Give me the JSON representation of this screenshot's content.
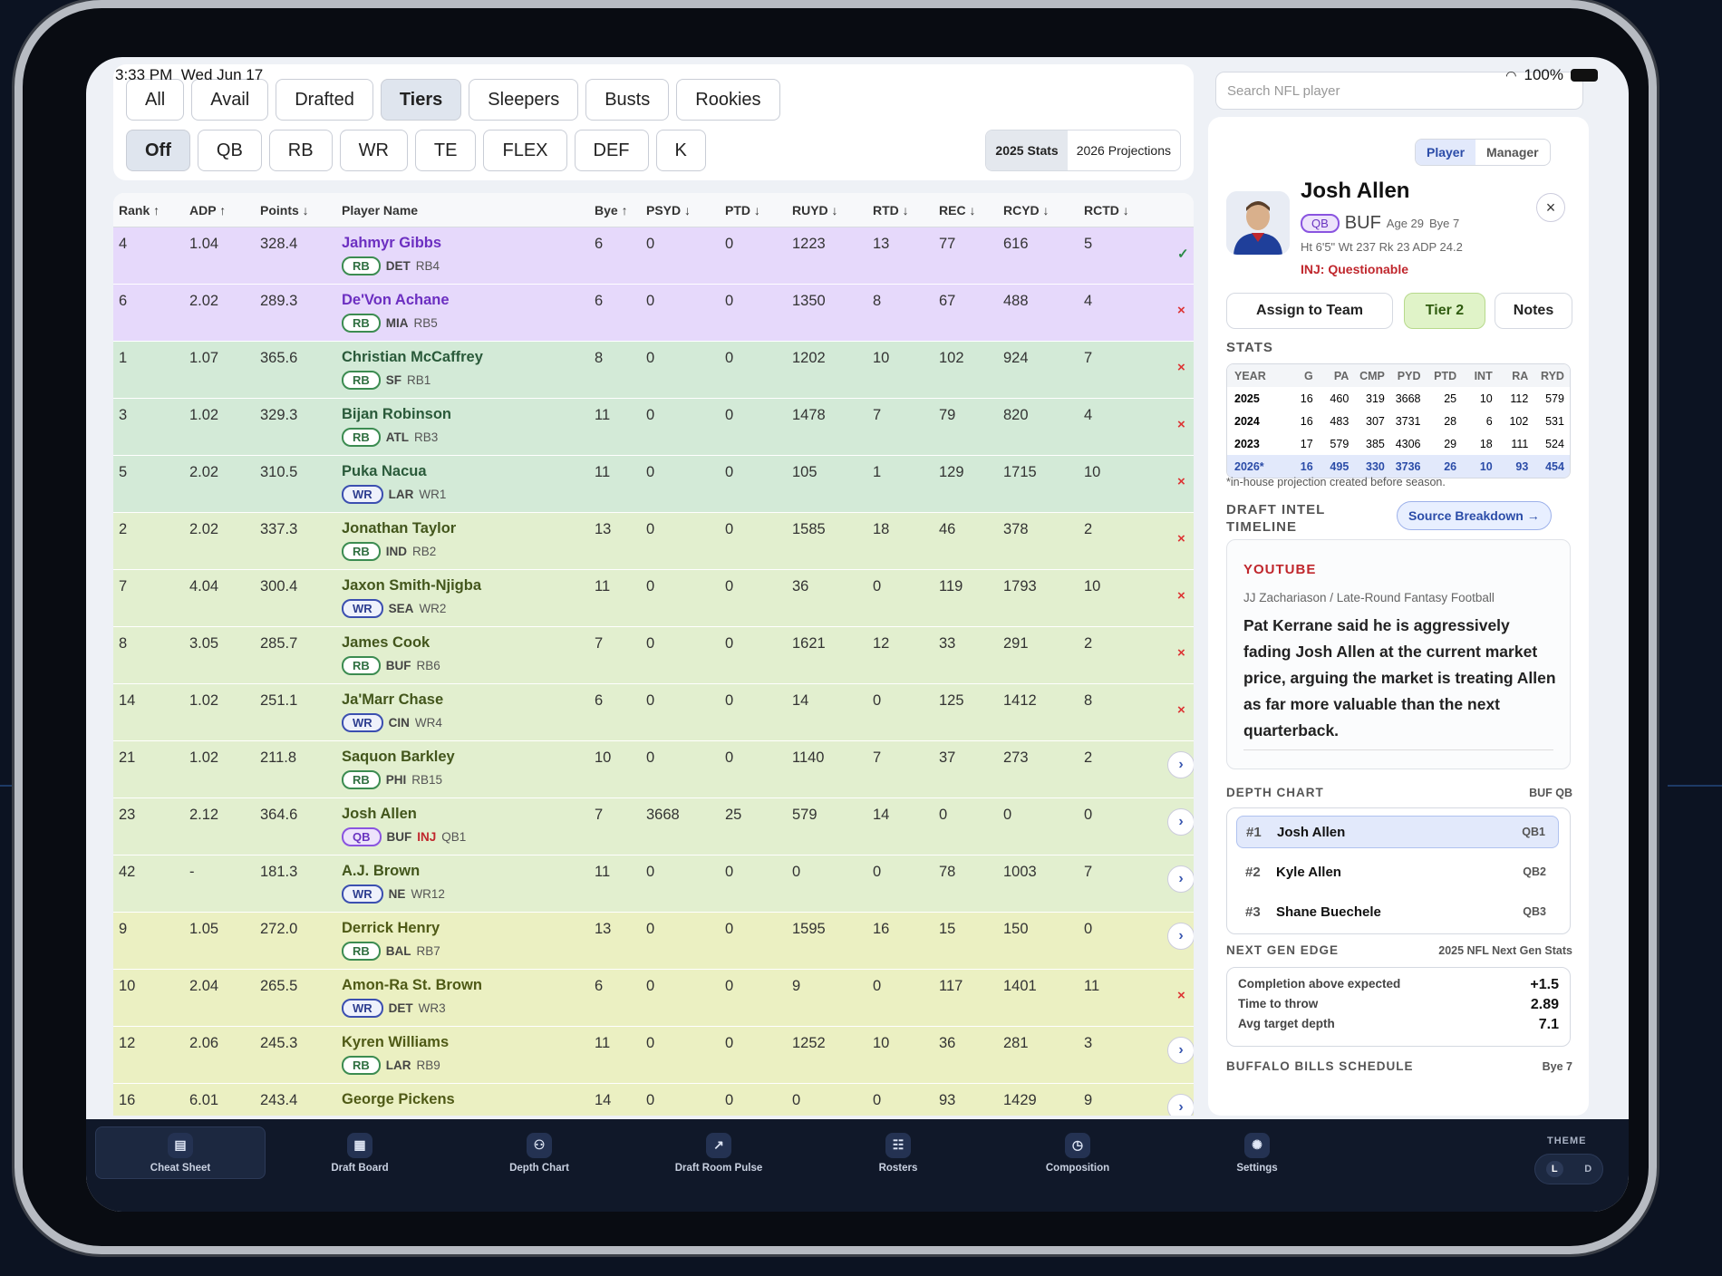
{
  "status": {
    "time": "3:33 PM",
    "date": "Wed Jun 17",
    "battery": "100%"
  },
  "filters": {
    "view_chips": [
      {
        "label": "All",
        "active": false
      },
      {
        "label": "Avail",
        "active": false
      },
      {
        "label": "Drafted",
        "active": false
      },
      {
        "label": "Tiers",
        "active": true
      },
      {
        "label": "Sleepers",
        "active": false
      },
      {
        "label": "Busts",
        "active": false
      },
      {
        "label": "Rookies",
        "active": false
      }
    ],
    "position_chips": [
      {
        "label": "Off",
        "active": true
      },
      {
        "label": "QB",
        "active": false
      },
      {
        "label": "RB",
        "active": false
      },
      {
        "label": "WR",
        "active": false
      },
      {
        "label": "TE",
        "active": false
      },
      {
        "label": "FLEX",
        "active": false
      },
      {
        "label": "DEF",
        "active": false
      },
      {
        "label": "K",
        "active": false
      }
    ],
    "stats_toggle": {
      "stats_2025": "2025 Stats",
      "proj_2026": "2026 Projections",
      "active": "2025 Stats"
    }
  },
  "table": {
    "headers": {
      "rank": "Rank ↑",
      "adp": "ADP ↑",
      "points": "Points ↓",
      "player": "Player Name",
      "bye": "Bye ↑",
      "psyd": "PSYD ↓",
      "ptd": "PTD ↓",
      "ruyd": "RUYD ↓",
      "rtd": "RTD ↓",
      "rec": "REC ↓",
      "rcyd": "RCYD ↓",
      "rctd": "RCTD ↓"
    },
    "rows": [
      {
        "rank": "4",
        "adp": "1.04",
        "points": "328.4",
        "name": "Jahmyr Gibbs",
        "pos": "RB",
        "team": "DET",
        "inj": "",
        "pos_rank": "RB4",
        "bye": "6",
        "psyd": "0",
        "ptd": "0",
        "ruyd": "1223",
        "rtd": "13",
        "rec": "77",
        "rcyd": "616",
        "rctd": "5",
        "action": "check",
        "tier_color": "#e6d9fb",
        "name_color": "#6c2fc1"
      },
      {
        "rank": "6",
        "adp": "2.02",
        "points": "289.3",
        "name": "De'Von Achane",
        "pos": "RB",
        "team": "MIA",
        "inj": "",
        "pos_rank": "RB5",
        "bye": "6",
        "psyd": "0",
        "ptd": "0",
        "ruyd": "1350",
        "rtd": "8",
        "rec": "67",
        "rcyd": "488",
        "rctd": "4",
        "action": "remove",
        "tier_color": "#e6d9fb",
        "name_color": "#6c2fc1"
      },
      {
        "rank": "1",
        "adp": "1.07",
        "points": "365.6",
        "name": "Christian McCaffrey",
        "pos": "RB",
        "team": "SF",
        "inj": "",
        "pos_rank": "RB1",
        "bye": "8",
        "psyd": "0",
        "ptd": "0",
        "ruyd": "1202",
        "rtd": "10",
        "rec": "102",
        "rcyd": "924",
        "rctd": "7",
        "action": "remove",
        "tier_color": "#d3ead7",
        "name_color": "#2a5a3a"
      },
      {
        "rank": "3",
        "adp": "1.02",
        "points": "329.3",
        "name": "Bijan Robinson",
        "pos": "RB",
        "team": "ATL",
        "inj": "",
        "pos_rank": "RB3",
        "bye": "11",
        "psyd": "0",
        "ptd": "0",
        "ruyd": "1478",
        "rtd": "7",
        "rec": "79",
        "rcyd": "820",
        "rctd": "4",
        "action": "remove",
        "tier_color": "#d3ead7",
        "name_color": "#2a5a3a"
      },
      {
        "rank": "5",
        "adp": "2.02",
        "points": "310.5",
        "name": "Puka Nacua",
        "pos": "WR",
        "team": "LAR",
        "inj": "",
        "pos_rank": "WR1",
        "bye": "11",
        "psyd": "0",
        "ptd": "0",
        "ruyd": "105",
        "rtd": "1",
        "rec": "129",
        "rcyd": "1715",
        "rctd": "10",
        "action": "remove",
        "tier_color": "#d3ead7",
        "name_color": "#2a5a3a"
      },
      {
        "rank": "2",
        "adp": "2.02",
        "points": "337.3",
        "name": "Jonathan Taylor",
        "pos": "RB",
        "team": "IND",
        "inj": "",
        "pos_rank": "RB2",
        "bye": "13",
        "psyd": "0",
        "ptd": "0",
        "ruyd": "1585",
        "rtd": "18",
        "rec": "46",
        "rcyd": "378",
        "rctd": "2",
        "action": "remove",
        "tier_color": "#e2efcf",
        "name_color": "#43561c"
      },
      {
        "rank": "7",
        "adp": "4.04",
        "points": "300.4",
        "name": "Jaxon Smith-Njigba",
        "pos": "WR",
        "team": "SEA",
        "inj": "",
        "pos_rank": "WR2",
        "bye": "11",
        "psyd": "0",
        "ptd": "0",
        "ruyd": "36",
        "rtd": "0",
        "rec": "119",
        "rcyd": "1793",
        "rctd": "10",
        "action": "remove",
        "tier_color": "#e2efcf",
        "name_color": "#43561c"
      },
      {
        "rank": "8",
        "adp": "3.05",
        "points": "285.7",
        "name": "James Cook",
        "pos": "RB",
        "team": "BUF",
        "inj": "",
        "pos_rank": "RB6",
        "bye": "7",
        "psyd": "0",
        "ptd": "0",
        "ruyd": "1621",
        "rtd": "12",
        "rec": "33",
        "rcyd": "291",
        "rctd": "2",
        "action": "remove",
        "tier_color": "#e2efcf",
        "name_color": "#43561c"
      },
      {
        "rank": "14",
        "adp": "1.02",
        "points": "251.1",
        "name": "Ja'Marr Chase",
        "pos": "WR",
        "team": "CIN",
        "inj": "",
        "pos_rank": "WR4",
        "bye": "6",
        "psyd": "0",
        "ptd": "0",
        "ruyd": "14",
        "rtd": "0",
        "rec": "125",
        "rcyd": "1412",
        "rctd": "8",
        "action": "remove",
        "tier_color": "#e2efcf",
        "name_color": "#43561c"
      },
      {
        "rank": "21",
        "adp": "1.02",
        "points": "211.8",
        "name": "Saquon Barkley",
        "pos": "RB",
        "team": "PHI",
        "inj": "",
        "pos_rank": "RB15",
        "bye": "10",
        "psyd": "0",
        "ptd": "0",
        "ruyd": "1140",
        "rtd": "7",
        "rec": "37",
        "rcyd": "273",
        "rctd": "2",
        "action": "open",
        "tier_color": "#e2efcf",
        "name_color": "#43561c"
      },
      {
        "rank": "23",
        "adp": "2.12",
        "points": "364.6",
        "name": "Josh Allen",
        "pos": "QB",
        "team": "BUF",
        "inj": "INJ",
        "pos_rank": "QB1",
        "bye": "7",
        "psyd": "3668",
        "ptd": "25",
        "ruyd": "579",
        "rtd": "14",
        "rec": "0",
        "rcyd": "0",
        "rctd": "0",
        "action": "open",
        "tier_color": "#e2efcf",
        "name_color": "#43561c"
      },
      {
        "rank": "42",
        "adp": "-",
        "points": "181.3",
        "name": "A.J. Brown",
        "pos": "WR",
        "team": "NE",
        "inj": "",
        "pos_rank": "WR12",
        "bye": "11",
        "psyd": "0",
        "ptd": "0",
        "ruyd": "0",
        "rtd": "0",
        "rec": "78",
        "rcyd": "1003",
        "rctd": "7",
        "action": "open",
        "tier_color": "#e2efcf",
        "name_color": "#43561c"
      },
      {
        "rank": "9",
        "adp": "1.05",
        "points": "272.0",
        "name": "Derrick Henry",
        "pos": "RB",
        "team": "BAL",
        "inj": "",
        "pos_rank": "RB7",
        "bye": "13",
        "psyd": "0",
        "ptd": "0",
        "ruyd": "1595",
        "rtd": "16",
        "rec": "15",
        "rcyd": "150",
        "rctd": "0",
        "action": "open",
        "tier_color": "#ebf0c2",
        "name_color": "#4f5a16"
      },
      {
        "rank": "10",
        "adp": "2.04",
        "points": "265.5",
        "name": "Amon-Ra St. Brown",
        "pos": "WR",
        "team": "DET",
        "inj": "",
        "pos_rank": "WR3",
        "bye": "6",
        "psyd": "0",
        "ptd": "0",
        "ruyd": "9",
        "rtd": "0",
        "rec": "117",
        "rcyd": "1401",
        "rctd": "11",
        "action": "remove",
        "tier_color": "#ebf0c2",
        "name_color": "#4f5a16"
      },
      {
        "rank": "12",
        "adp": "2.06",
        "points": "245.3",
        "name": "Kyren Williams",
        "pos": "RB",
        "team": "LAR",
        "inj": "",
        "pos_rank": "RB9",
        "bye": "11",
        "psyd": "0",
        "ptd": "0",
        "ruyd": "1252",
        "rtd": "10",
        "rec": "36",
        "rcyd": "281",
        "rctd": "3",
        "action": "open",
        "tier_color": "#ebf0c2",
        "name_color": "#4f5a16"
      },
      {
        "rank": "16",
        "adp": "6.01",
        "points": "243.4",
        "name": "George Pickens",
        "pos": "",
        "team": "",
        "inj": "",
        "pos_rank": "",
        "bye": "14",
        "psyd": "0",
        "ptd": "0",
        "ruyd": "0",
        "rtd": "0",
        "rec": "93",
        "rcyd": "1429",
        "rctd": "9",
        "action": "open",
        "tier_color": "#ebf0c2",
        "name_color": "#4f5a16"
      }
    ]
  },
  "search": {
    "placeholder": "Search NFL player"
  },
  "detail": {
    "tabs": {
      "player": "Player",
      "manager": "Manager"
    },
    "close": "×",
    "name": "Josh Allen",
    "pos": "QB",
    "team": "BUF",
    "age": "Age 29",
    "bye": "Bye 7",
    "meta": "Ht 6'5\"   Wt 237   Rk 23   ADP 24.2",
    "injury": "INJ: Questionable",
    "buttons": {
      "assign": "Assign to Team",
      "tier": "Tier 2",
      "notes": "Notes"
    },
    "stats_title": "STATS",
    "stats_headers": [
      "YEAR",
      "G",
      "PA",
      "CMP",
      "PYD",
      "PTD",
      "INT",
      "RA",
      "RYD"
    ],
    "stats_rows": [
      [
        "2025",
        "16",
        "460",
        "319",
        "3668",
        "25",
        "10",
        "112",
        "579"
      ],
      [
        "2024",
        "16",
        "483",
        "307",
        "3731",
        "28",
        "6",
        "102",
        "531"
      ],
      [
        "2023",
        "17",
        "579",
        "385",
        "4306",
        "29",
        "18",
        "111",
        "524"
      ],
      [
        "2026*",
        "16",
        "495",
        "330",
        "3736",
        "26",
        "10",
        "93",
        "454"
      ]
    ],
    "stats_note": "*in-house projection created before season.",
    "intel_title_1": "DRAFT INTEL",
    "intel_title_2": "TIMELINE",
    "source_btn": "Source Breakdown →",
    "intel": {
      "source": "YOUTUBE",
      "by": "JJ Zachariason / Late-Round Fantasy Football",
      "text": "Pat Kerrane said he is aggressively fading Josh Allen at the current market price, arguing the market is treating Allen as far more valuable than the next quarterback."
    },
    "depth_title": "DEPTH CHART",
    "depth_team": "BUF QB",
    "depth": [
      {
        "n": "#1",
        "name": "Josh Allen",
        "pos": "QB1"
      },
      {
        "n": "#2",
        "name": "Kyle Allen",
        "pos": "QB2"
      },
      {
        "n": "#3",
        "name": "Shane Buechele",
        "pos": "QB3"
      }
    ],
    "ngs_title": "NEXT GEN EDGE",
    "ngs_sub": "2025 NFL Next Gen Stats",
    "ngs": [
      {
        "label": "Completion above expected",
        "value": "+1.5"
      },
      {
        "label": "Time to throw",
        "value": "2.89"
      },
      {
        "label": "Avg target depth",
        "value": "7.1"
      }
    ],
    "schedule_title": "BUFFALO BILLS SCHEDULE",
    "schedule_bye": "Bye 7"
  },
  "nav": {
    "items": [
      {
        "label": "Cheat Sheet",
        "icon": "cheat-sheet-icon",
        "active": true
      },
      {
        "label": "Draft Board",
        "icon": "draft-board-icon",
        "active": false
      },
      {
        "label": "Depth Chart",
        "icon": "depth-chart-icon",
        "active": false
      },
      {
        "label": "Draft Room Pulse",
        "icon": "pulse-icon",
        "active": false
      },
      {
        "label": "Rosters",
        "icon": "rosters-icon",
        "active": false
      },
      {
        "label": "Composition",
        "icon": "composition-icon",
        "active": false
      },
      {
        "label": "Settings",
        "icon": "settings-icon",
        "active": false
      }
    ],
    "theme_label": "THEME",
    "theme_light": "L",
    "theme_dark": "D"
  }
}
